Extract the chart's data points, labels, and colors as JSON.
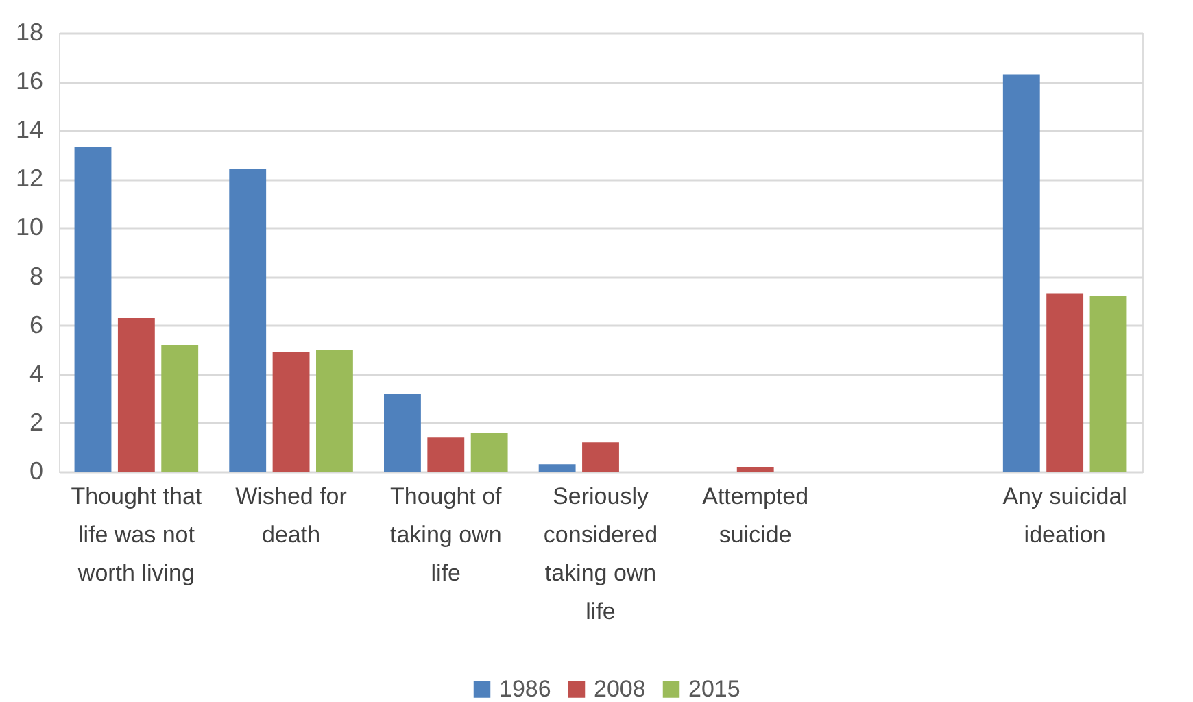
{
  "chart_data": {
    "type": "bar",
    "categories": [
      "Thought that life was not worth living",
      "Wished for death",
      "Thought of taking own life",
      "Seriously considered taking own life",
      "Attempted suicide",
      null,
      "Any suicidal ideation"
    ],
    "series": [
      {
        "name": "1986",
        "color": "#4f81bd",
        "values": [
          13.3,
          12.4,
          3.2,
          0.3,
          0,
          null,
          16.3
        ]
      },
      {
        "name": "2008",
        "color": "#c0504d",
        "values": [
          6.3,
          4.9,
          1.4,
          1.2,
          0.2,
          null,
          7.3
        ]
      },
      {
        "name": "2015",
        "color": "#9bbb59",
        "values": [
          5.2,
          5.0,
          1.6,
          0,
          0,
          null,
          7.2
        ]
      }
    ],
    "ylim": [
      0,
      18
    ],
    "yticks": [
      0,
      2,
      4,
      6,
      8,
      10,
      12,
      14,
      16,
      18
    ],
    "grid": "y",
    "legend": "bottom"
  }
}
